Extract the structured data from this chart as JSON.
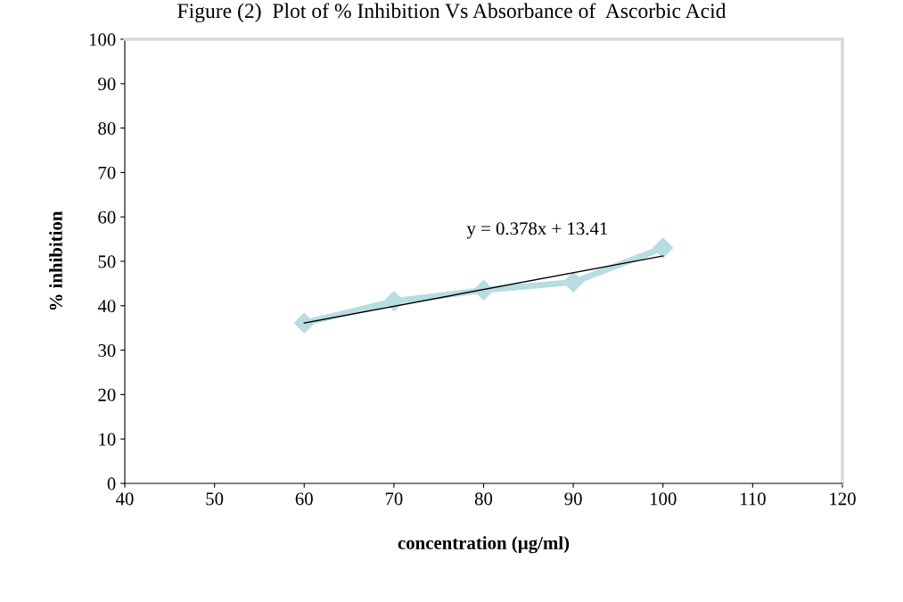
{
  "chart_data": {
    "type": "line",
    "title": "Figure (2)  Plot of % Inhibition Vs Absorbance of  Ascorbic Acid",
    "xlabel": "concentration (µg/ml)",
    "ylabel": "% inhibition",
    "x": [
      60,
      70,
      80,
      90,
      100
    ],
    "series": [
      {
        "color": "#b7dde0",
        "values": [
          36.1,
          41.0,
          43.5,
          45.3,
          53.0
        ],
        "marker": "diamond"
      },
      {
        "color": "#000000",
        "x": [
          60,
          100
        ],
        "values": [
          36.1,
          51.2
        ],
        "marker": "none"
      }
    ],
    "annotations": [
      "y = 0.378x + 13.41"
    ],
    "xlim": [
      40,
      120
    ],
    "xticks": [
      40,
      50,
      60,
      70,
      80,
      90,
      100,
      110,
      120
    ],
    "ylim": [
      0,
      100
    ],
    "yticks": [
      0,
      10,
      20,
      30,
      40,
      50,
      60,
      70,
      80,
      90,
      100
    ],
    "grid": false,
    "legend": false
  }
}
